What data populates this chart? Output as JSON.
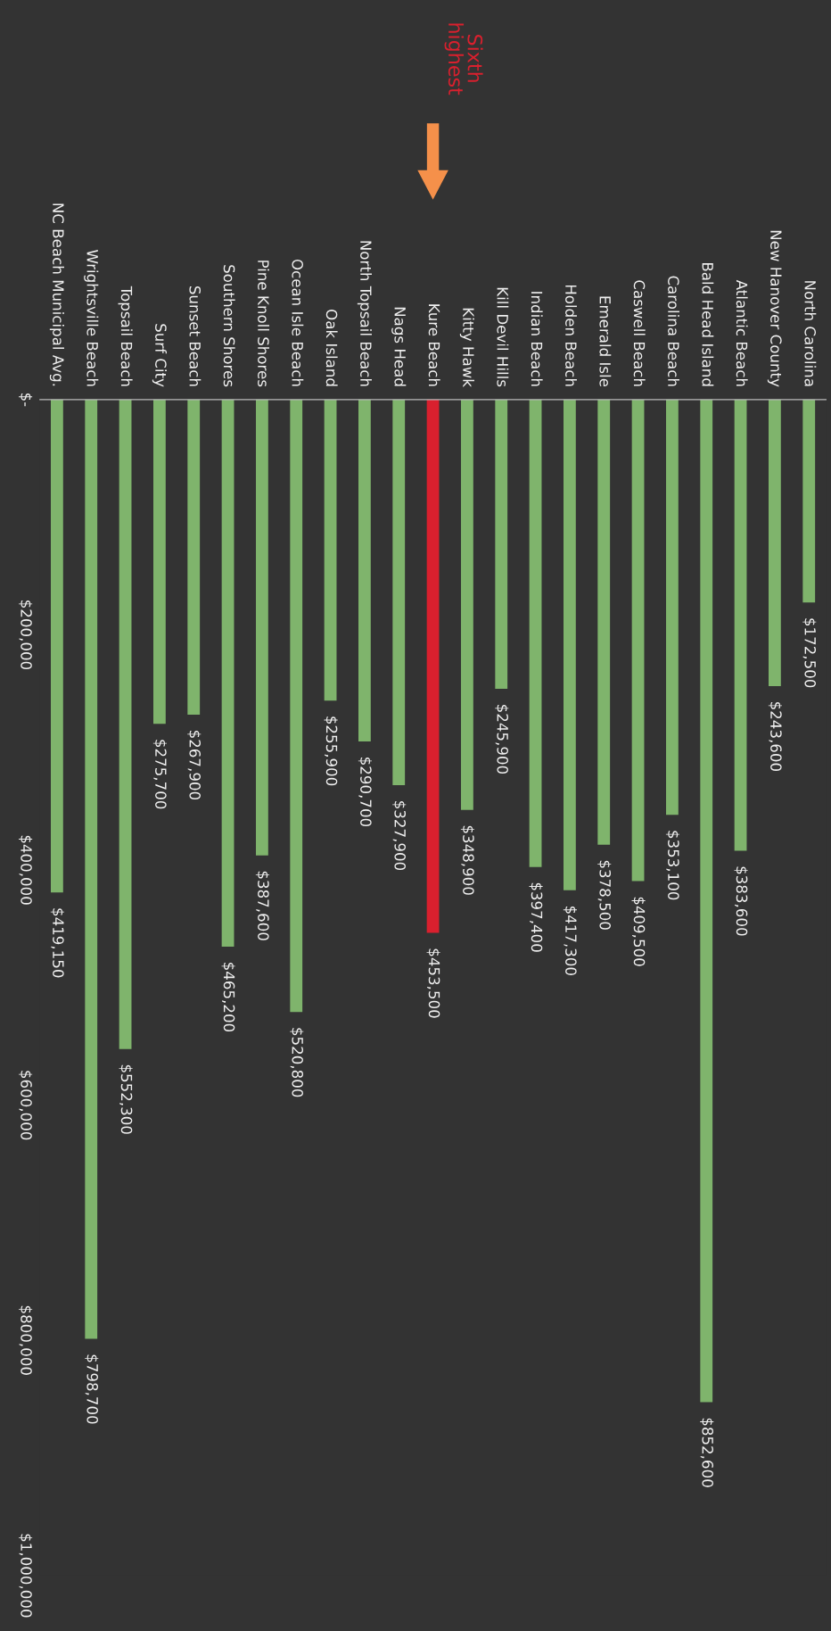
{
  "chart_data": {
    "type": "bar",
    "categories": [
      "NC Beach Municipal Avg.",
      "Wrightsville Beach",
      "Topsail Beach",
      "Surf City",
      "Sunset Beach",
      "Southern Shores",
      "Pine Knoll Shores",
      "Ocean Isle Beach",
      "Oak Island",
      "North Topsail Beach",
      "Nags Head",
      "Kure Beach",
      "Kitty Hawk",
      "Kill Devil Hills",
      "Indian Beach",
      "Holden Beach",
      "Emerald Isle",
      "Caswell Beach",
      "Carolina Beach",
      "Bald Head Island",
      "Atlantic Beach",
      "New Hanover County",
      "North Carolina"
    ],
    "values": [
      419150,
      798700,
      552300,
      275700,
      267900,
      465200,
      387600,
      520800,
      255900,
      290700,
      327900,
      453500,
      348900,
      245900,
      397400,
      417300,
      378500,
      409500,
      353100,
      852600,
      383600,
      243600,
      172500
    ],
    "value_labels": [
      "$419,150",
      "$798,700",
      "$552,300",
      "$275,700",
      "$267,900",
      "$465,200",
      "$387,600",
      "$520,800",
      "$255,900",
      "$290,700",
      "$327,900",
      "$453,500",
      "$348,900",
      "$245,900",
      "$397,400",
      "$417,300",
      "$378,500",
      "$409,500",
      "$353,100",
      "$852,600",
      "$383,600",
      "$243,600",
      "$172,500"
    ],
    "colors": [
      "#7fb46c",
      "#7fb46c",
      "#7fb46c",
      "#7fb46c",
      "#7fb46c",
      "#7fb46c",
      "#7fb46c",
      "#7fb46c",
      "#7fb46c",
      "#7fb46c",
      "#7fb46c",
      "#d9202e",
      "#7fb46c",
      "#7fb46c",
      "#7fb46c",
      "#7fb46c",
      "#7fb46c",
      "#7fb46c",
      "#7fb46c",
      "#7fb46c",
      "#7fb46c",
      "#7fb46c",
      "#7fb46c"
    ],
    "ylim": [
      1000000,
      0
    ],
    "yticks": [
      {
        "value": 0,
        "label": "$-"
      },
      {
        "value": 200000,
        "label": "$200,000"
      },
      {
        "value": 400000,
        "label": "$400,000"
      },
      {
        "value": 600000,
        "label": "$600,000"
      },
      {
        "value": 800000,
        "label": "$800,000"
      },
      {
        "value": 1000000,
        "label": "$1,000,000"
      }
    ],
    "annotations": [
      "Sixth\nhighest"
    ]
  }
}
